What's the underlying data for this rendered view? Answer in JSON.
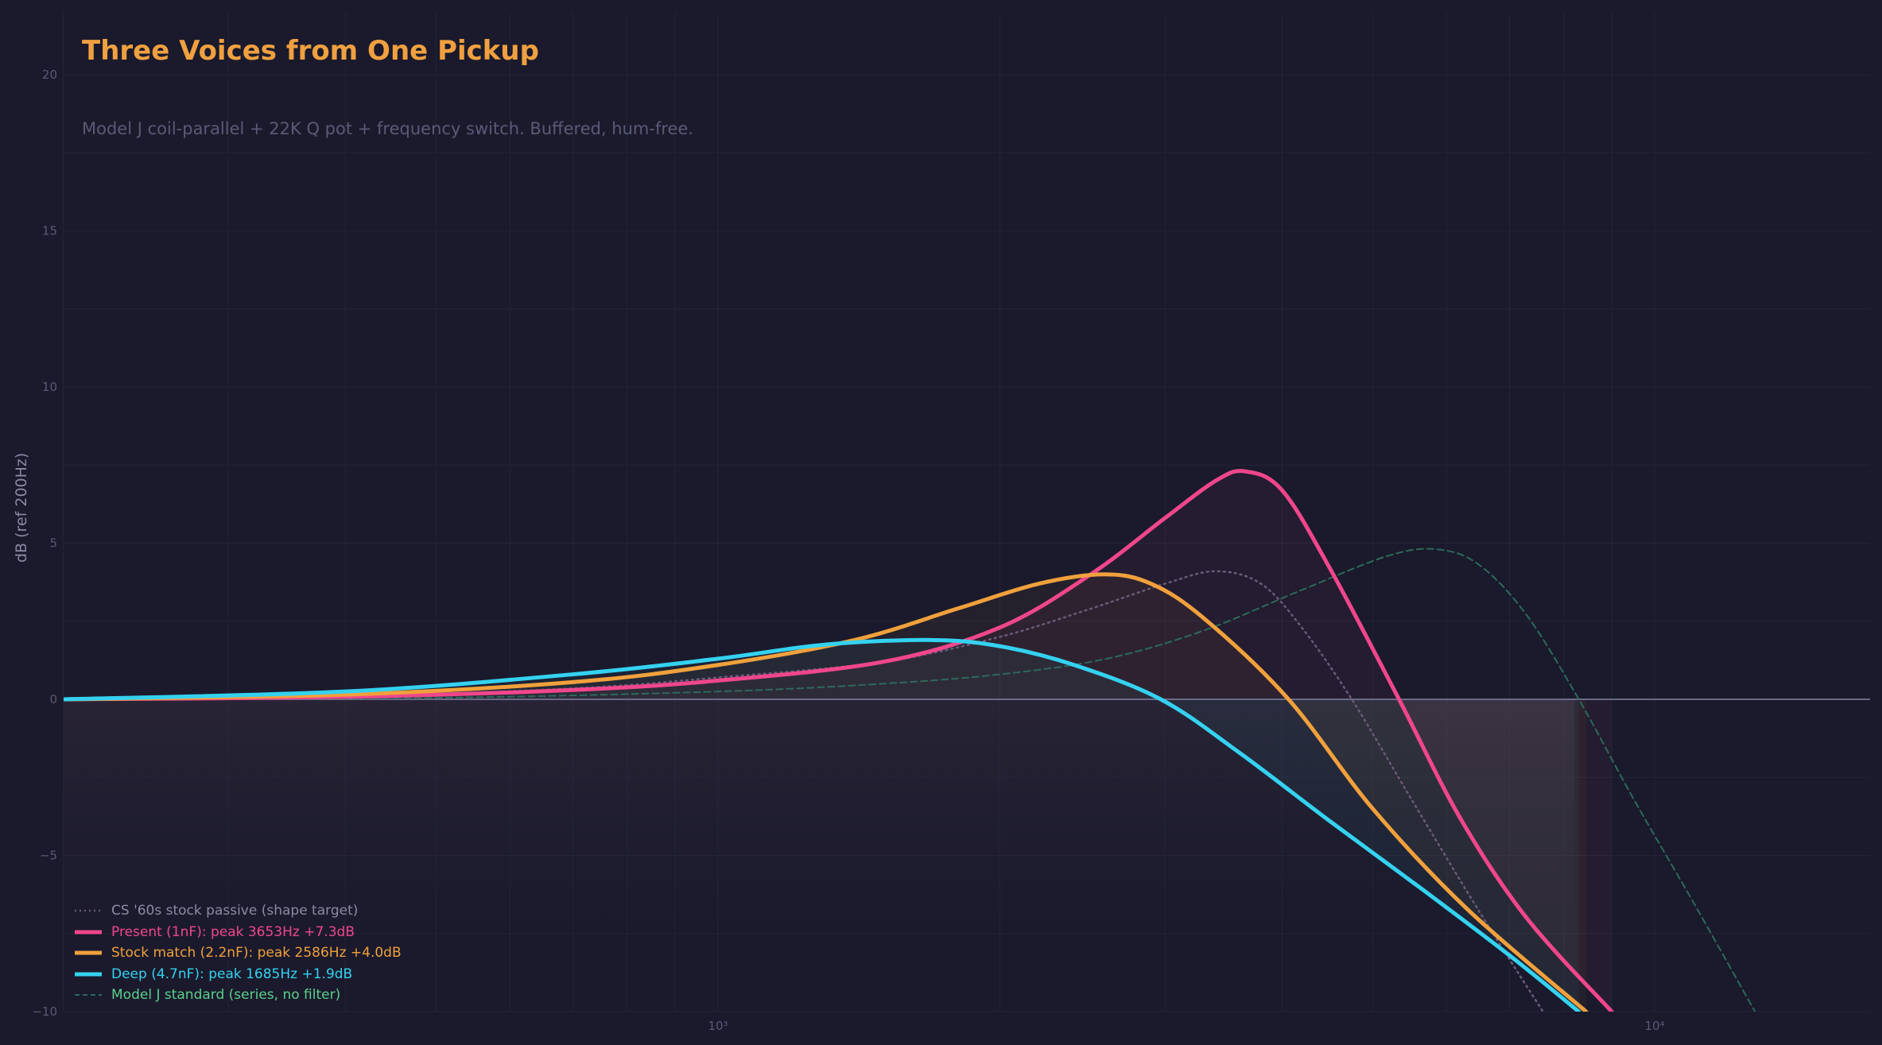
{
  "chart_data": {
    "type": "line",
    "title": "Three Voices from One Pickup",
    "subtitle": "Model J coil-parallel + 22K Q pot + frequency switch. Buffered, hum-free.",
    "xlabel": "",
    "ylabel": "dB (ref 200Hz)",
    "xscale": "log",
    "xlim": [
      200,
      17000
    ],
    "ylim": [
      -10,
      22
    ],
    "x_ticks": [
      {
        "value": 1000,
        "label": "10³"
      },
      {
        "value": 10000,
        "label": "10⁴"
      }
    ],
    "y_ticks": [
      -10,
      -5,
      0,
      5,
      10,
      15,
      20
    ],
    "y_tick_labels": [
      "−10",
      "−5",
      "0",
      "5",
      "10",
      "15",
      "20"
    ],
    "grid": true,
    "legend_position": "lower left",
    "series": [
      {
        "name": "CS '60s stock passive (shape target)",
        "color": "#6a5a78",
        "style": "dotted",
        "width": 2.5,
        "points": [
          [
            200,
            0
          ],
          [
            400,
            0.1
          ],
          [
            700,
            0.35
          ],
          [
            1000,
            0.7
          ],
          [
            1500,
            1.2
          ],
          [
            2000,
            2.0
          ],
          [
            2500,
            2.9
          ],
          [
            3000,
            3.7
          ],
          [
            3400,
            4.1
          ],
          [
            3800,
            3.7
          ],
          [
            4200,
            2.3
          ],
          [
            4750,
            0
          ],
          [
            5500,
            -3.2
          ],
          [
            6500,
            -6.8
          ],
          [
            7600,
            -10
          ]
        ]
      },
      {
        "name": "Present (1nF): peak 3653Hz +7.3dB",
        "color": "#f0468c",
        "style": "solid",
        "width": 5,
        "peak_hz": 3653,
        "peak_db": 7.3,
        "points": [
          [
            200,
            0
          ],
          [
            400,
            0.08
          ],
          [
            700,
            0.3
          ],
          [
            1000,
            0.6
          ],
          [
            1500,
            1.2
          ],
          [
            2000,
            2.3
          ],
          [
            2500,
            4.0
          ],
          [
            3000,
            5.8
          ],
          [
            3400,
            7.0
          ],
          [
            3653,
            7.3
          ],
          [
            4000,
            6.7
          ],
          [
            4500,
            4.2
          ],
          [
            5335,
            0
          ],
          [
            6200,
            -3.8
          ],
          [
            7300,
            -7.0
          ],
          [
            9000,
            -10
          ]
        ]
      },
      {
        "name": "Stock match (2.2nF): peak 2586Hz +4.0dB",
        "color": "#f0a03c",
        "style": "solid",
        "width": 5,
        "peak_hz": 2586,
        "peak_db": 4.0,
        "points": [
          [
            200,
            0
          ],
          [
            400,
            0.15
          ],
          [
            700,
            0.55
          ],
          [
            1000,
            1.1
          ],
          [
            1400,
            1.9
          ],
          [
            1800,
            2.9
          ],
          [
            2200,
            3.7
          ],
          [
            2586,
            4.0
          ],
          [
            2900,
            3.7
          ],
          [
            3300,
            2.6
          ],
          [
            4066,
            0
          ],
          [
            5000,
            -3.5
          ],
          [
            6300,
            -6.7
          ],
          [
            8450,
            -10
          ]
        ]
      },
      {
        "name": "Deep (4.7nF): peak 1685Hz +1.9dB",
        "color": "#34d2f0",
        "style": "solid",
        "width": 5,
        "peak_hz": 1685,
        "peak_db": 1.9,
        "points": [
          [
            200,
            0
          ],
          [
            400,
            0.25
          ],
          [
            700,
            0.8
          ],
          [
            1000,
            1.3
          ],
          [
            1300,
            1.75
          ],
          [
            1685,
            1.9
          ],
          [
            2000,
            1.7
          ],
          [
            2400,
            1.1
          ],
          [
            2970,
            0
          ],
          [
            3600,
            -1.7
          ],
          [
            4500,
            -3.9
          ],
          [
            5600,
            -6.0
          ],
          [
            7000,
            -8.2
          ],
          [
            8300,
            -10
          ]
        ]
      },
      {
        "name": "Model J standard (series, no filter)",
        "color": "#2c6a5a",
        "legend_text_color": "#5ad08c",
        "style": "dashed",
        "width": 2,
        "points": [
          [
            200,
            0
          ],
          [
            500,
            0.05
          ],
          [
            1000,
            0.25
          ],
          [
            1500,
            0.5
          ],
          [
            2000,
            0.8
          ],
          [
            2600,
            1.3
          ],
          [
            3300,
            2.2
          ],
          [
            4200,
            3.5
          ],
          [
            5200,
            4.6
          ],
          [
            5870,
            4.8
          ],
          [
            6500,
            4.3
          ],
          [
            7300,
            2.7
          ],
          [
            8300,
            0
          ],
          [
            9500,
            -3.2
          ],
          [
            11000,
            -6.5
          ],
          [
            12800,
            -10
          ]
        ]
      }
    ]
  },
  "title": "Three Voices from One Pickup",
  "subtitle": "Model J coil-parallel + 22K Q pot + frequency switch. Buffered, hum-free.",
  "ylabel": "dB (ref 200Hz)",
  "legend": [
    {
      "label": "CS '60s stock passive (shape target)",
      "color": "#8a8aa4",
      "line": "#6a5a78",
      "style": "dotted"
    },
    {
      "label": "Present (1nF): peak 3653Hz +7.3dB",
      "color": "#f0468c",
      "line": "#f0468c",
      "style": "solid"
    },
    {
      "label": "Stock match (2.2nF): peak 2586Hz +4.0dB",
      "color": "#f0a03c",
      "line": "#f0a03c",
      "style": "solid"
    },
    {
      "label": "Deep (4.7nF): peak 1685Hz +1.9dB",
      "color": "#34d2f0",
      "line": "#34d2f0",
      "style": "solid"
    },
    {
      "label": "Model J standard (series, no filter)",
      "color": "#5ad08c",
      "line": "#2c6a5a",
      "style": "dashed"
    }
  ],
  "colors": {
    "background": "#1a1a2c",
    "grid": "#242438",
    "zero_line": "#6a6a88",
    "tick_text": "#5a5a78",
    "title": "#f0a040"
  }
}
